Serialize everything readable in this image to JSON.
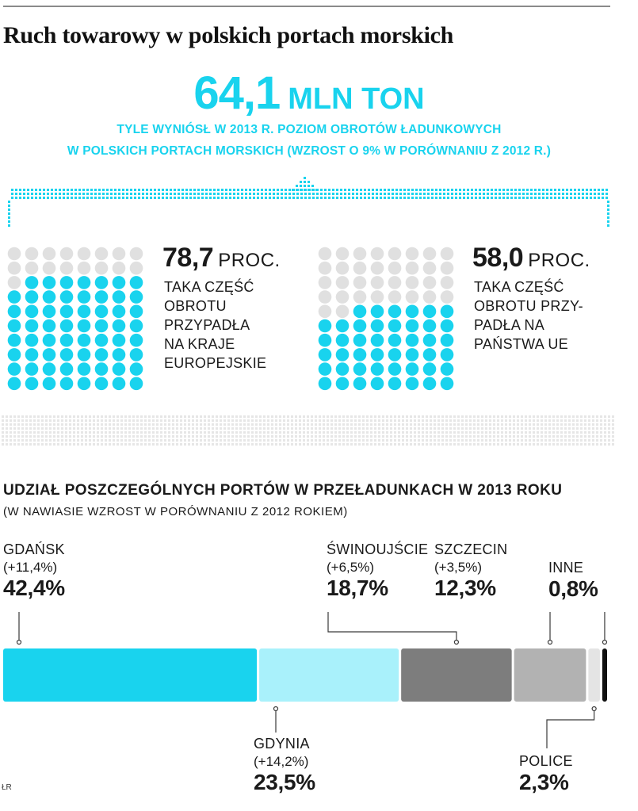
{
  "title": "Ruch towarowy w polskich portach morskich",
  "headline": {
    "value": "64,1",
    "unit": "MLN TON",
    "line1": "TYLE WYNIÓSŁ W 2013 R. POZIOM OBROTÓW ŁADUNKOWYCH",
    "line2": "W POLSKICH PORTACH MORSKICH (WZROST O 9% W PORÓWNANIU Z 2012 R.)"
  },
  "colors": {
    "cyan": "#19d3ee",
    "light_cyan": "#a9f1fb",
    "dark_gray": "#7d7d7d",
    "mid_gray": "#b2b2b2",
    "light_gray": "#e4e4e4",
    "black": "#111111",
    "dot_empty": "#e0e0e0"
  },
  "share_panels": [
    {
      "value": "78,7",
      "unit": "PROC.",
      "description": [
        "TAKA CZĘŚĆ",
        "OBROTU",
        "PRZYPADŁA",
        "NA KRAJE",
        "EUROPEJSKIE"
      ]
    },
    {
      "value": "58,0",
      "unit": "PROC.",
      "description": [
        "TAKA CZĘŚĆ",
        "OBROTU PRZY-",
        "PADŁA NA",
        "PAŃSTWA UE"
      ]
    }
  ],
  "ports_section": {
    "title": "UDZIAŁ POSZCZEGÓLNYCH PORTÓW W PRZEŁADUNKACH W 2013 ROKU",
    "subtitle": "(W NAWIASIE WZROST W PORÓWNANIU Z 2012 ROKIEM)"
  },
  "source": "ŁR",
  "chart_data": [
    {
      "type": "bar",
      "title": "78,7 PROC.",
      "categories": [
        "Kraje europejskie"
      ],
      "values": [
        78.7
      ],
      "ylim": [
        0,
        100
      ]
    },
    {
      "type": "bar",
      "title": "58,0 PROC.",
      "categories": [
        "Państwa UE"
      ],
      "values": [
        58.0
      ],
      "ylim": [
        0,
        100
      ]
    },
    {
      "type": "bar",
      "stacked": true,
      "orientation": "horizontal",
      "title": "UDZIAŁ POSZCZEGÓLNYCH PORTÓW W PRZEŁADUNKACH W 2013 ROKU",
      "subtitle": "(W NAWIASIE WZROST W PORÓWNANIU Z 2012 ROKIEM)",
      "xlim": [
        0,
        100
      ],
      "series": [
        {
          "name": "GDAŃSK",
          "value": 42.4,
          "label": "42,4%",
          "growth": "(+11,4%)",
          "color": "#19d3ee",
          "label_side": "top"
        },
        {
          "name": "GDYNIA",
          "value": 23.5,
          "label": "23,5%",
          "growth": "(+14,2%)",
          "color": "#a9f1fb",
          "label_side": "bottom"
        },
        {
          "name": "ŚWINOUJŚCIE",
          "value": 18.7,
          "label": "18,7%",
          "growth": "(+6,5%)",
          "color": "#7d7d7d",
          "label_side": "top"
        },
        {
          "name": "SZCZECIN",
          "value": 12.3,
          "label": "12,3%",
          "growth": "(+3,5%)",
          "color": "#b2b2b2",
          "label_side": "top"
        },
        {
          "name": "POLICE",
          "value": 2.3,
          "label": "2,3%",
          "growth": "",
          "color": "#e4e4e4",
          "label_side": "bottom"
        },
        {
          "name": "INNE",
          "value": 0.8,
          "label": "0,8%",
          "growth": "",
          "color": "#111111",
          "label_side": "top"
        }
      ]
    }
  ]
}
